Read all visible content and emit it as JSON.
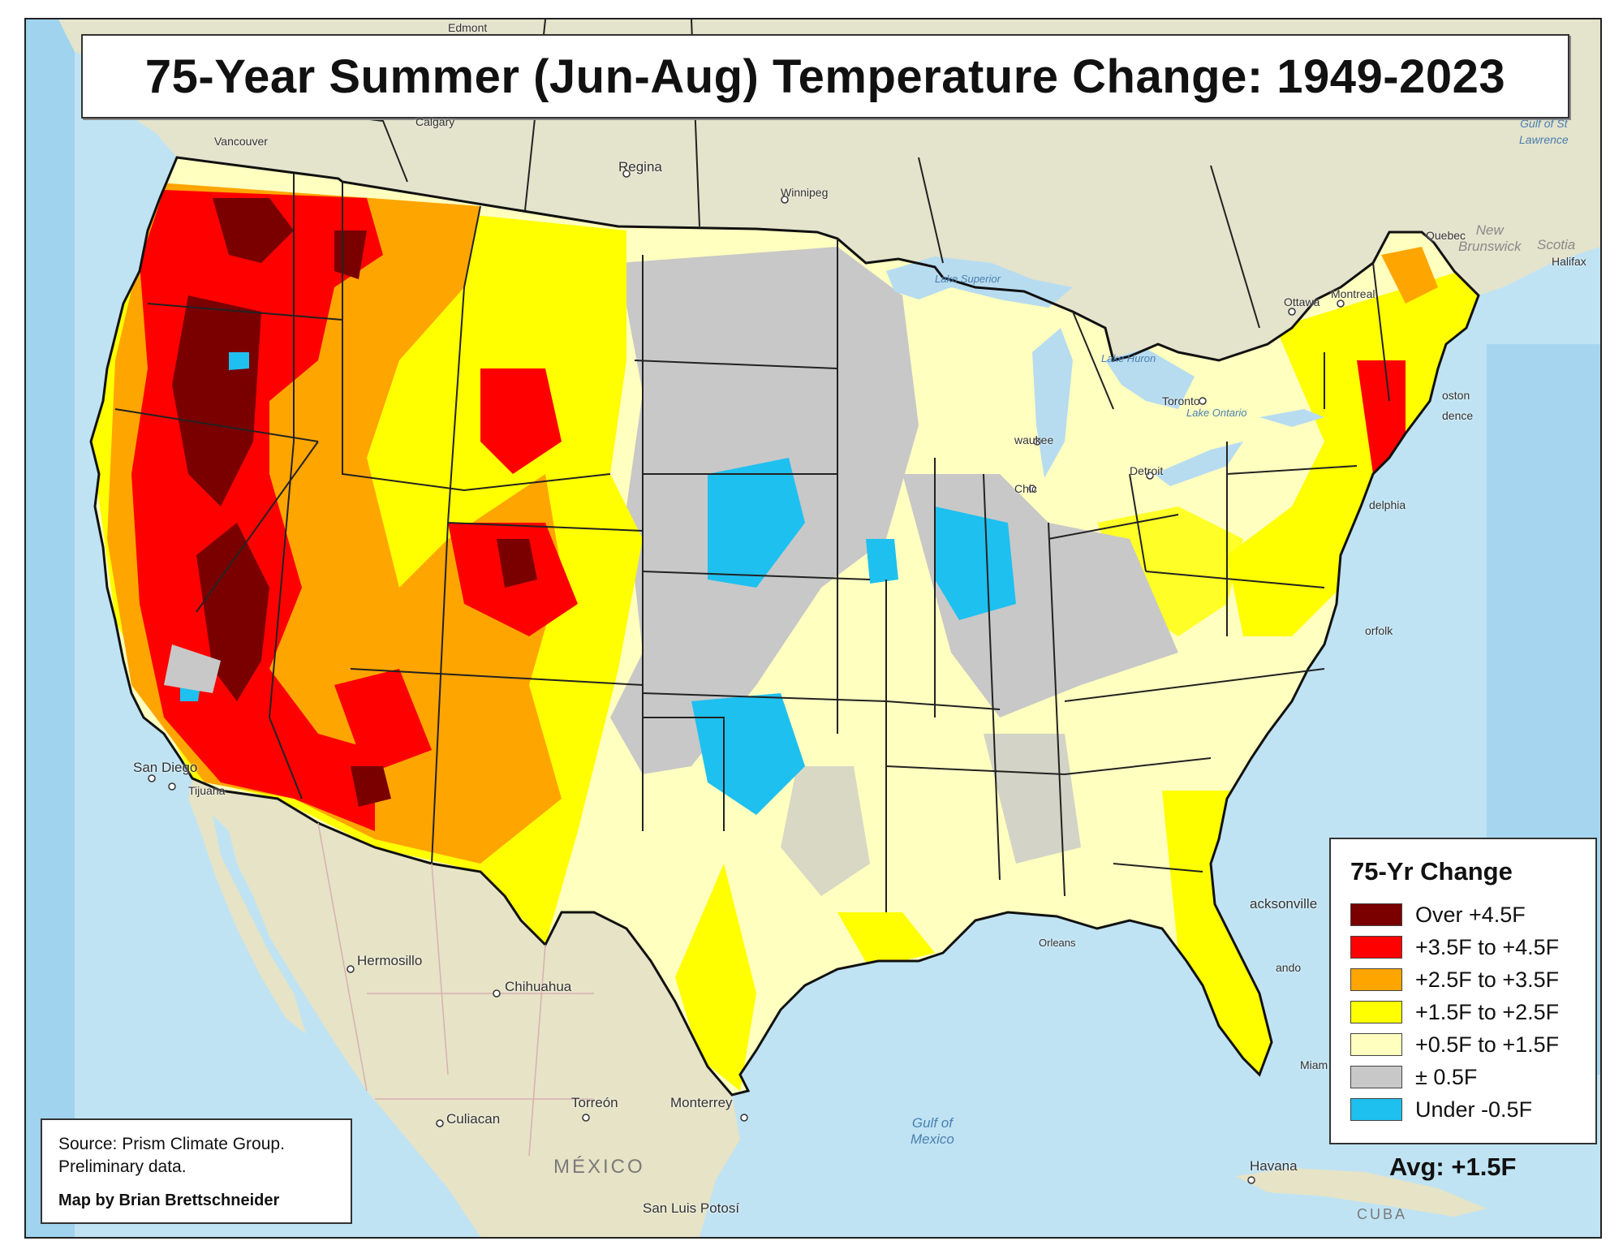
{
  "title": "75-Year Summer (Jun-Aug) Temperature Change: 1949-2023",
  "legend": {
    "title": "75-Yr Change",
    "items": [
      {
        "label": "Over +4.5F",
        "color": "#7a0000"
      },
      {
        "label": "+3.5F to +4.5F",
        "color": "#ff0000"
      },
      {
        "label": "+2.5F to +3.5F",
        "color": "#ffa500"
      },
      {
        "label": "+1.5F to +2.5F",
        "color": "#ffff00"
      },
      {
        "label": "+0.5F to +1.5F",
        "color": "#ffffc0"
      },
      {
        "label": "± 0.5F",
        "color": "#c8c8c8"
      },
      {
        "label": "Under -0.5F",
        "color": "#1ec0f0"
      }
    ]
  },
  "average": "Avg: +1.5F",
  "source": {
    "line1": "Source: Prism Climate Group.",
    "line2": "Preliminary data.",
    "credit": "Map by Brian Brettschneider"
  },
  "places": {
    "edmonton": "Edmont",
    "vancouver": "Vancouver",
    "calgary": "Calgary",
    "regina": "Regina",
    "winnipeg": "Winnipeg",
    "ottawa": "Ottawa",
    "montreal": "Montreal",
    "toronto": "Toronto",
    "quebec": "Quebec",
    "new_brunswick": "New\nBrunswick",
    "nova_scotia": "Scotia",
    "halifax": "Halifax",
    "boston": "oston",
    "providence": "dence",
    "philadelphia": "delphia",
    "milwaukee": "waukee",
    "chicago": "Chic",
    "detroit": "Detroit",
    "san_diego": "San Diego",
    "tijuana": "Tijuana",
    "hermosillo": "Hermosillo",
    "chihuahua": "Chihuahua",
    "culiacan": "Culiacan",
    "torreon": "Torreón",
    "monterrey": "Monterrey",
    "san_luis": "San Luis\nPotosí",
    "mexico": "MÉXICO",
    "havana": "Havana",
    "cuba": "CUBA",
    "jacksonville": "acksonville",
    "orlando": "ando",
    "miami": "Miam",
    "norfolk": "orfolk",
    "new_orleans": "Orleans"
  },
  "water": {
    "gulf_st_lawrence": "Gulf of St\nLawrence",
    "gulf_mexico": "Gulf of\nMexico",
    "lake_superior": "Lake Superior",
    "lake_huron": "Lake Huron",
    "lake_ontario": "Lake Ontario"
  }
}
